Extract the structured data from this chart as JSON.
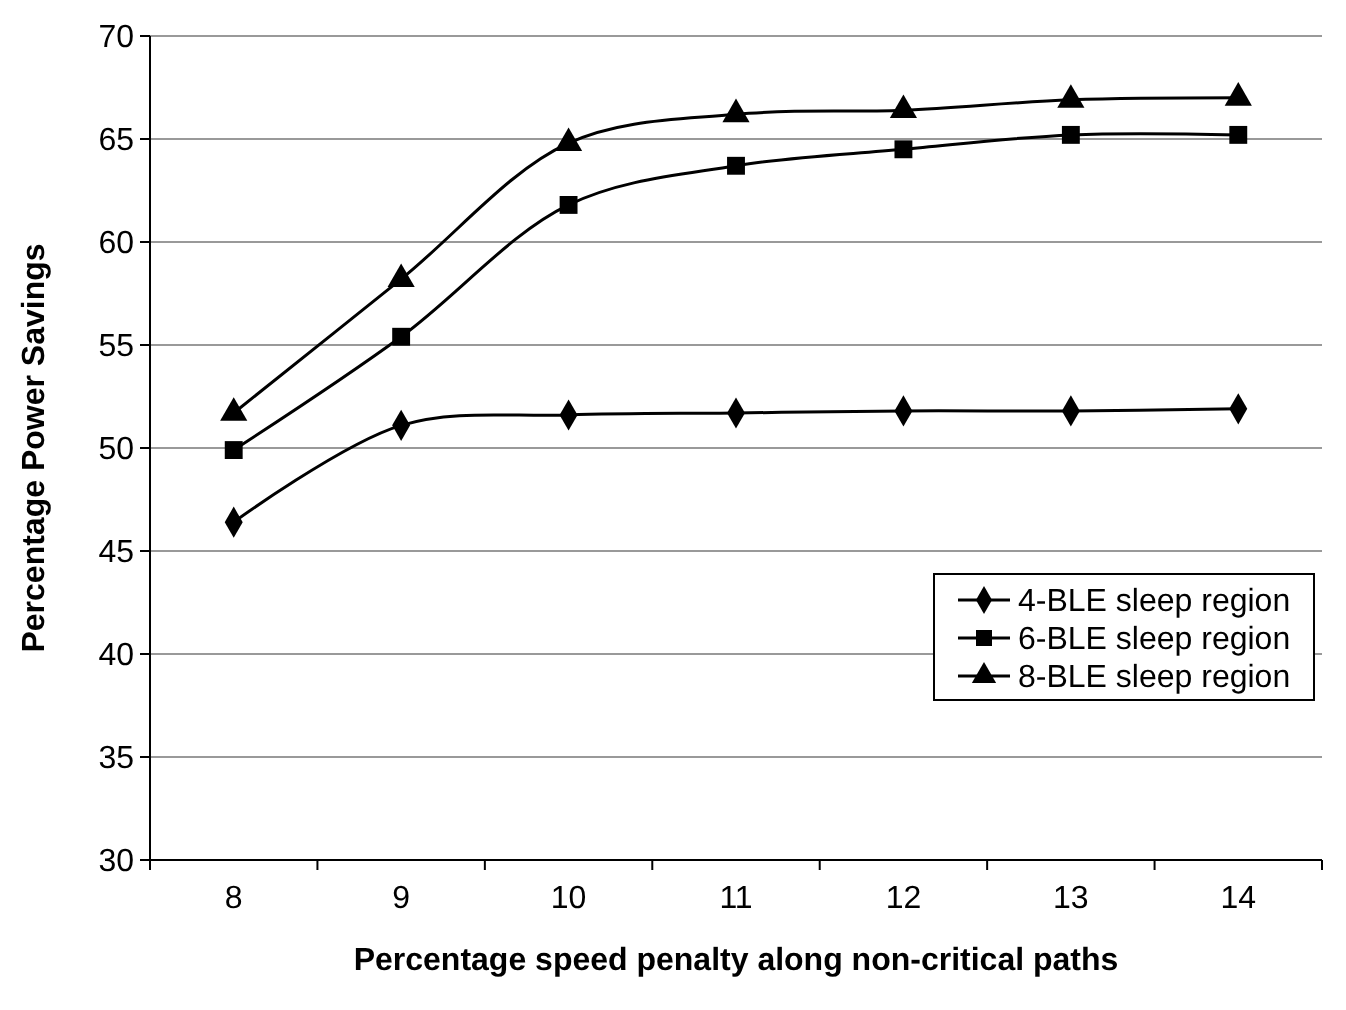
{
  "chart_data": {
    "type": "line",
    "xlabel": "Percentage speed penalty along non-critical paths",
    "ylabel": "Percentage Power Savings",
    "categories": [
      "8",
      "9",
      "10",
      "11",
      "12",
      "13",
      "14"
    ],
    "series": [
      {
        "name": "4-BLE sleep region",
        "color": "#000000",
        "marker": "diamond",
        "values": [
          46.4,
          51.1,
          51.6,
          51.7,
          51.8,
          51.8,
          51.9
        ]
      },
      {
        "name": "6-BLE sleep region",
        "color": "#000000",
        "marker": "square",
        "values": [
          49.9,
          55.4,
          61.8,
          63.7,
          64.5,
          65.2,
          65.2
        ]
      },
      {
        "name": "8-BLE sleep region",
        "color": "#000000",
        "marker": "triangle",
        "values": [
          51.7,
          58.2,
          64.8,
          66.2,
          66.4,
          66.9,
          67.0
        ]
      }
    ],
    "ylim": [
      30,
      70
    ],
    "yticks": [
      30,
      35,
      40,
      45,
      50,
      55,
      60,
      65,
      70
    ],
    "grid": "y",
    "legend": "bottom right",
    "line_style": "solid"
  }
}
